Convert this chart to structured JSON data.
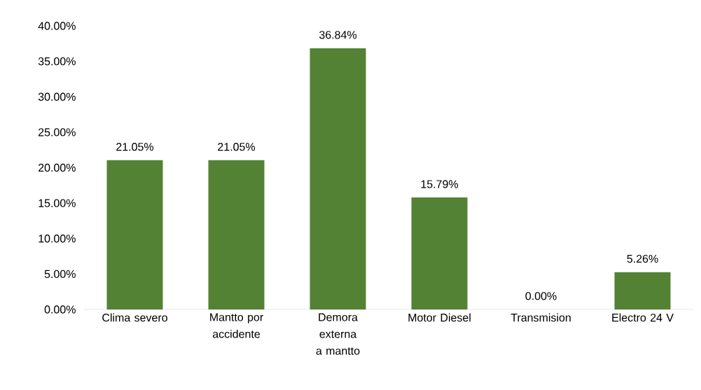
{
  "chart_data": {
    "type": "bar",
    "categories": [
      "Clima severo",
      "Mantto por accidente",
      "Demora externa a mantto",
      "Motor Diesel",
      "Transmision",
      "Electro 24 V"
    ],
    "values": [
      21.05,
      21.05,
      36.84,
      15.79,
      0,
      5.26
    ],
    "value_labels": [
      "21.05%",
      "21.05%",
      "36.84%",
      "15.79%",
      "0.00%",
      "5.26%"
    ],
    "grid": false,
    "color": "#548235",
    "ylim": [
      0,
      40
    ],
    "yticks": [
      {
        "value": 0,
        "label": "0.00%"
      },
      {
        "value": 5,
        "label": "5.00%"
      },
      {
        "value": 10,
        "label": "10.00%"
      },
      {
        "value": 15,
        "label": "15.00%"
      },
      {
        "value": 20,
        "label": "20.00%"
      },
      {
        "value": 25,
        "label": "25.00%"
      },
      {
        "value": 30,
        "label": "30.00%"
      },
      {
        "value": 35,
        "label": "35.00%"
      },
      {
        "value": 40,
        "label": "40.00%"
      }
    ]
  }
}
